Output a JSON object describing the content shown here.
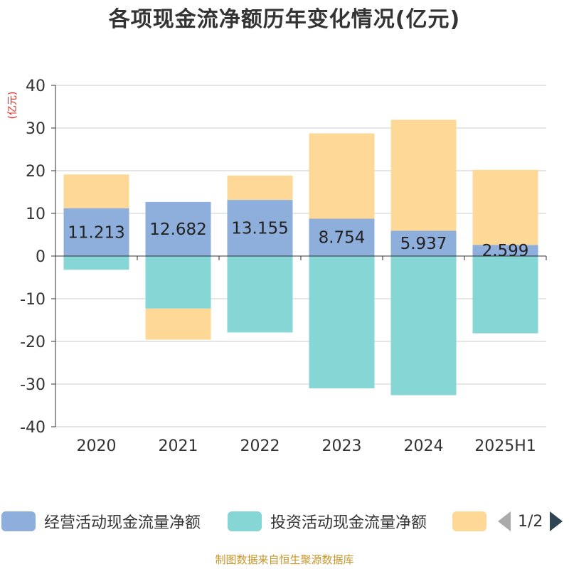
{
  "title": "各项现金流净额历年变化情况(亿元)",
  "unit_label": "(亿元)",
  "source": "制图数据来自恒生聚源数据库",
  "pager": "1/2",
  "chart_data": {
    "type": "bar",
    "stacked": true,
    "categories": [
      "2020",
      "2021",
      "2022",
      "2023",
      "2024",
      "2025H1"
    ],
    "ylim": [
      -40,
      40
    ],
    "yticks": [
      40,
      30,
      20,
      10,
      0,
      -10,
      -20,
      -30,
      -40
    ],
    "grid": true,
    "legend_position": "bottom",
    "series": [
      {
        "name": "经营活动现金流量净额",
        "color": "#8eaedb",
        "values": [
          11.213,
          12.682,
          13.155,
          8.754,
          5.937,
          2.599
        ],
        "labels": [
          "11.213",
          "12.682",
          "13.155",
          "8.754",
          "5.937",
          "2.599"
        ]
      },
      {
        "name": "投资活动现金流量净额",
        "color": "#86d6d6",
        "values": [
          -3.2,
          -12.3,
          -17.9,
          -31.0,
          -32.6,
          -18.1
        ]
      },
      {
        "name": "",
        "color": "#fed896",
        "values": [
          7.9,
          -7.3,
          5.7,
          20.0,
          26.0,
          17.6
        ]
      }
    ]
  }
}
